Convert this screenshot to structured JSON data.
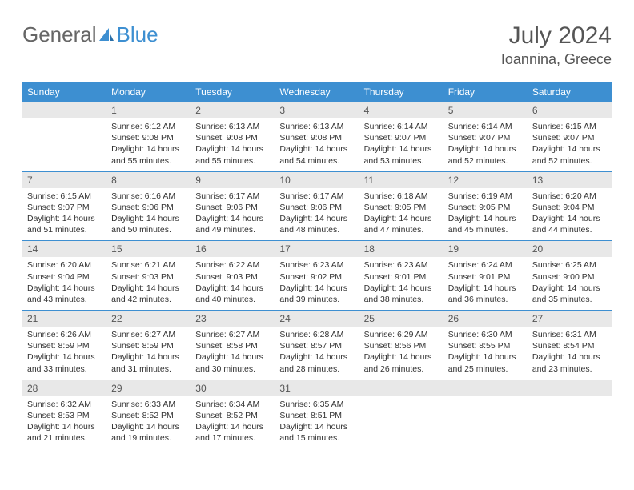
{
  "logo": {
    "text1": "General",
    "text2": "Blue"
  },
  "title": "July 2024",
  "location": "Ioannina, Greece",
  "colors": {
    "header_bg": "#3d8fd1",
    "header_text": "#ffffff",
    "daynum_bg": "#e8e8e8",
    "border": "#3d8fd1",
    "body_text": "#333333",
    "title_text": "#555555"
  },
  "weekdays": [
    "Sunday",
    "Monday",
    "Tuesday",
    "Wednesday",
    "Thursday",
    "Friday",
    "Saturday"
  ],
  "weeks": [
    [
      null,
      {
        "d": "1",
        "sr": "6:12 AM",
        "ss": "9:08 PM",
        "dl": "14 hours and 55 minutes."
      },
      {
        "d": "2",
        "sr": "6:13 AM",
        "ss": "9:08 PM",
        "dl": "14 hours and 55 minutes."
      },
      {
        "d": "3",
        "sr": "6:13 AM",
        "ss": "9:08 PM",
        "dl": "14 hours and 54 minutes."
      },
      {
        "d": "4",
        "sr": "6:14 AM",
        "ss": "9:07 PM",
        "dl": "14 hours and 53 minutes."
      },
      {
        "d": "5",
        "sr": "6:14 AM",
        "ss": "9:07 PM",
        "dl": "14 hours and 52 minutes."
      },
      {
        "d": "6",
        "sr": "6:15 AM",
        "ss": "9:07 PM",
        "dl": "14 hours and 52 minutes."
      }
    ],
    [
      {
        "d": "7",
        "sr": "6:15 AM",
        "ss": "9:07 PM",
        "dl": "14 hours and 51 minutes."
      },
      {
        "d": "8",
        "sr": "6:16 AM",
        "ss": "9:06 PM",
        "dl": "14 hours and 50 minutes."
      },
      {
        "d": "9",
        "sr": "6:17 AM",
        "ss": "9:06 PM",
        "dl": "14 hours and 49 minutes."
      },
      {
        "d": "10",
        "sr": "6:17 AM",
        "ss": "9:06 PM",
        "dl": "14 hours and 48 minutes."
      },
      {
        "d": "11",
        "sr": "6:18 AM",
        "ss": "9:05 PM",
        "dl": "14 hours and 47 minutes."
      },
      {
        "d": "12",
        "sr": "6:19 AM",
        "ss": "9:05 PM",
        "dl": "14 hours and 45 minutes."
      },
      {
        "d": "13",
        "sr": "6:20 AM",
        "ss": "9:04 PM",
        "dl": "14 hours and 44 minutes."
      }
    ],
    [
      {
        "d": "14",
        "sr": "6:20 AM",
        "ss": "9:04 PM",
        "dl": "14 hours and 43 minutes."
      },
      {
        "d": "15",
        "sr": "6:21 AM",
        "ss": "9:03 PM",
        "dl": "14 hours and 42 minutes."
      },
      {
        "d": "16",
        "sr": "6:22 AM",
        "ss": "9:03 PM",
        "dl": "14 hours and 40 minutes."
      },
      {
        "d": "17",
        "sr": "6:23 AM",
        "ss": "9:02 PM",
        "dl": "14 hours and 39 minutes."
      },
      {
        "d": "18",
        "sr": "6:23 AM",
        "ss": "9:01 PM",
        "dl": "14 hours and 38 minutes."
      },
      {
        "d": "19",
        "sr": "6:24 AM",
        "ss": "9:01 PM",
        "dl": "14 hours and 36 minutes."
      },
      {
        "d": "20",
        "sr": "6:25 AM",
        "ss": "9:00 PM",
        "dl": "14 hours and 35 minutes."
      }
    ],
    [
      {
        "d": "21",
        "sr": "6:26 AM",
        "ss": "8:59 PM",
        "dl": "14 hours and 33 minutes."
      },
      {
        "d": "22",
        "sr": "6:27 AM",
        "ss": "8:59 PM",
        "dl": "14 hours and 31 minutes."
      },
      {
        "d": "23",
        "sr": "6:27 AM",
        "ss": "8:58 PM",
        "dl": "14 hours and 30 minutes."
      },
      {
        "d": "24",
        "sr": "6:28 AM",
        "ss": "8:57 PM",
        "dl": "14 hours and 28 minutes."
      },
      {
        "d": "25",
        "sr": "6:29 AM",
        "ss": "8:56 PM",
        "dl": "14 hours and 26 minutes."
      },
      {
        "d": "26",
        "sr": "6:30 AM",
        "ss": "8:55 PM",
        "dl": "14 hours and 25 minutes."
      },
      {
        "d": "27",
        "sr": "6:31 AM",
        "ss": "8:54 PM",
        "dl": "14 hours and 23 minutes."
      }
    ],
    [
      {
        "d": "28",
        "sr": "6:32 AM",
        "ss": "8:53 PM",
        "dl": "14 hours and 21 minutes."
      },
      {
        "d": "29",
        "sr": "6:33 AM",
        "ss": "8:52 PM",
        "dl": "14 hours and 19 minutes."
      },
      {
        "d": "30",
        "sr": "6:34 AM",
        "ss": "8:52 PM",
        "dl": "14 hours and 17 minutes."
      },
      {
        "d": "31",
        "sr": "6:35 AM",
        "ss": "8:51 PM",
        "dl": "14 hours and 15 minutes."
      },
      null,
      null,
      null
    ]
  ],
  "labels": {
    "sunrise": "Sunrise:",
    "sunset": "Sunset:",
    "daylight": "Daylight:"
  }
}
